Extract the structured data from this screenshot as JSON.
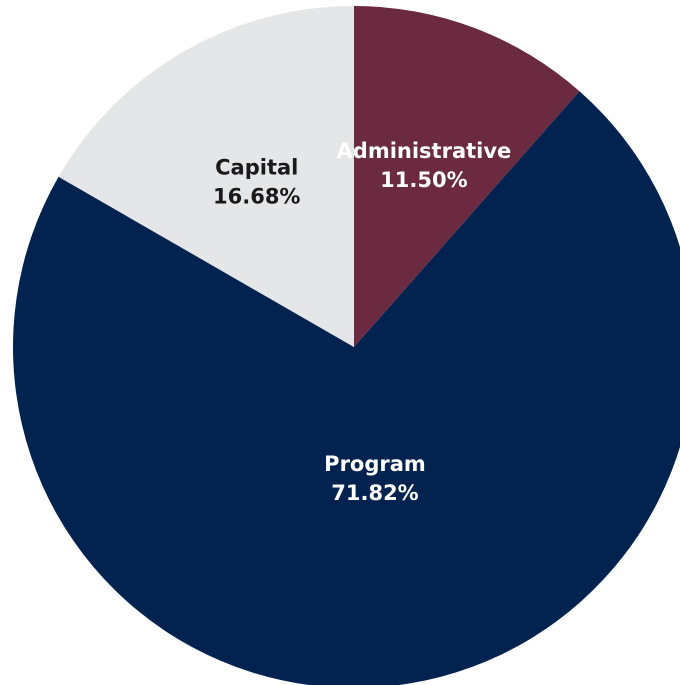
{
  "chart_data": {
    "type": "pie",
    "title": "",
    "slices": [
      {
        "label": "Administrative",
        "value": 11.5,
        "value_label": "11.50%",
        "color": "#6b2a3f",
        "label_color": "#ffffff"
      },
      {
        "label": "Program",
        "value": 71.82,
        "value_label": "71.82%",
        "color": "#022350",
        "label_color": "#ffffff"
      },
      {
        "label": "Capital",
        "value": 16.68,
        "value_label": "16.68%",
        "color": "#e5e6e8",
        "label_color": "#1a1a1a"
      }
    ],
    "start_angle": "12 o'clock",
    "direction": "clockwise",
    "legend": "none"
  }
}
